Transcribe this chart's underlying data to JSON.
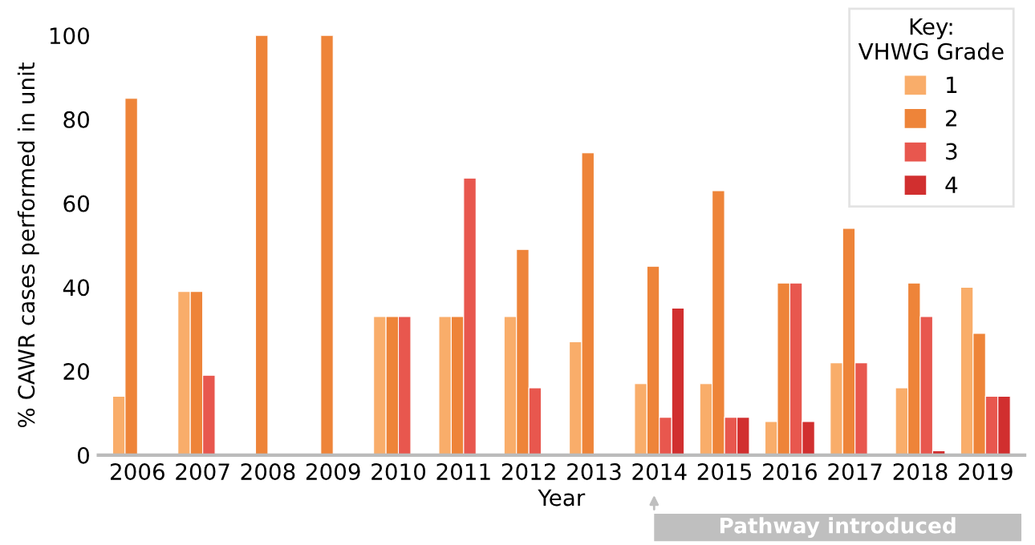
{
  "chart_data": {
    "type": "bar",
    "xlabel": "Year",
    "ylabel": "% CAWR cases performed in unit",
    "legend_title": "Key:\nVHWG Grade",
    "categories": [
      "2006",
      "2007",
      "2008",
      "2009",
      "2010",
      "2011",
      "2012",
      "2013",
      "2014",
      "2015",
      "2016",
      "2017",
      "2018",
      "2019"
    ],
    "series": [
      {
        "name": "1",
        "color": "#f9ad6a",
        "values": [
          14,
          39,
          null,
          null,
          33,
          33,
          33,
          27,
          17,
          17,
          8,
          22,
          16,
          40
        ]
      },
      {
        "name": "2",
        "color": "#ee8439",
        "values": [
          85,
          39,
          100,
          100,
          33,
          33,
          49,
          72,
          45,
          63,
          41,
          54,
          41,
          29
        ]
      },
      {
        "name": "3",
        "color": "#e8574e",
        "values": [
          null,
          19,
          null,
          null,
          33,
          66,
          16,
          null,
          9,
          9,
          41,
          22,
          33,
          14
        ]
      },
      {
        "name": "4",
        "color": "#d12f2f",
        "values": [
          null,
          null,
          null,
          null,
          null,
          null,
          null,
          null,
          35,
          9,
          8,
          null,
          1,
          14
        ]
      }
    ],
    "ylim": [
      0,
      100
    ],
    "yticks": [
      0,
      20,
      40,
      60,
      80,
      100
    ],
    "grid": false,
    "legend": "top right",
    "annotations": [
      "Pathway introduced"
    ]
  }
}
